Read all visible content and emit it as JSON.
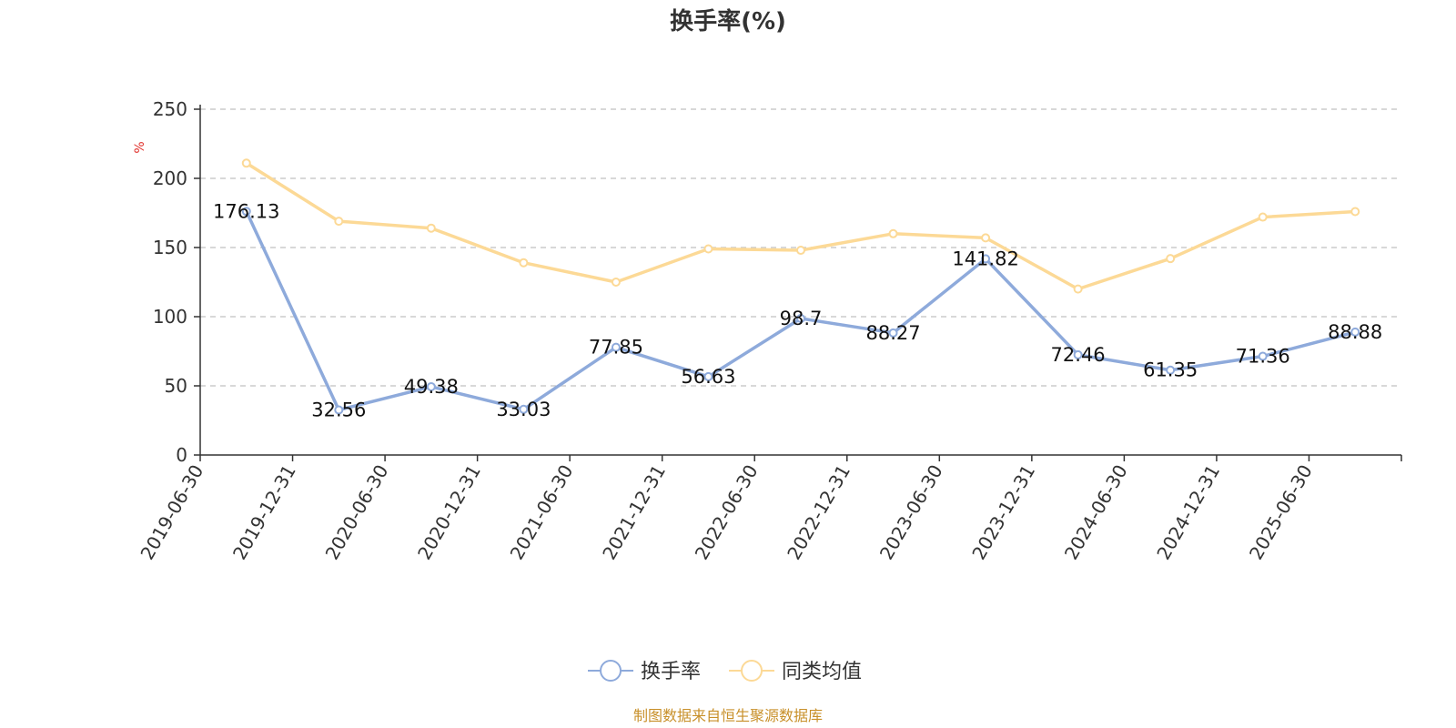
{
  "chart_data": {
    "type": "line",
    "title": "换手率(%)",
    "ylabel": "%",
    "ylim": [
      0,
      250
    ],
    "yticks": [
      0,
      50,
      100,
      150,
      200,
      250
    ],
    "grid": true,
    "legend_position": "bottom-center",
    "categories": [
      "2019-06-30",
      "2019-12-31",
      "2020-06-30",
      "2020-12-31",
      "2021-06-30",
      "2021-12-31",
      "2022-06-30",
      "2022-12-31",
      "2023-06-30",
      "2023-12-31",
      "2024-06-30",
      "2024-12-31",
      "2025-06-30"
    ],
    "series": [
      {
        "name": "换手率",
        "color": "#8eaadb",
        "show_labels": true,
        "labels": [
          "176.13",
          "32.56",
          "49.38",
          "33.03",
          "77.85",
          "56.63",
          "98.7",
          "88.27",
          "141.82",
          "72.46",
          "61.35",
          "71.36",
          "88.88"
        ],
        "values": [
          176.13,
          32.56,
          49.38,
          33.03,
          77.85,
          56.63,
          98.7,
          88.27,
          141.82,
          72.46,
          61.35,
          71.36,
          88.88
        ]
      },
      {
        "name": "同类均值",
        "color": "#fcd996",
        "show_labels": false,
        "values": [
          211,
          169,
          164,
          139,
          125,
          149,
          148,
          160,
          157,
          120,
          142,
          172,
          176
        ]
      }
    ]
  },
  "source_text": "制图数据来自恒生聚源数据库"
}
